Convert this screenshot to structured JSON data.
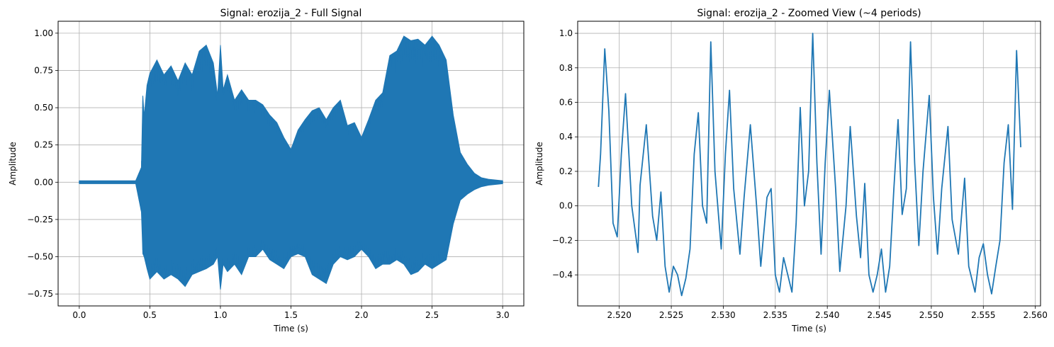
{
  "chart_data": [
    {
      "type": "line",
      "title": "Signal: erozija_2 - Full Signal",
      "xlabel": "Time (s)",
      "ylabel": "Amplitude",
      "xlim": [
        -0.15,
        3.15
      ],
      "ylim": [
        -0.83,
        1.08
      ],
      "xticks": [
        0.0,
        0.5,
        1.0,
        1.5,
        2.0,
        2.5,
        3.0
      ],
      "xtick_labels": [
        "0.0",
        "0.5",
        "1.0",
        "1.5",
        "2.0",
        "2.5",
        "3.0"
      ],
      "yticks": [
        -0.75,
        -0.5,
        -0.25,
        0.0,
        0.25,
        0.5,
        0.75,
        1.0
      ],
      "ytick_labels": [
        "−0.75",
        "−0.50",
        "−0.25",
        "0.00",
        "0.25",
        "0.50",
        "0.75",
        "1.00"
      ],
      "grid": true,
      "color": "#1f77b4",
      "series": [
        {
          "x": [
            0.0,
            0.2,
            0.4,
            0.44,
            0.45,
            0.46,
            0.48,
            0.5,
            0.55,
            0.6,
            0.65,
            0.7,
            0.75,
            0.8,
            0.85,
            0.9,
            0.95,
            0.98,
            1.0,
            1.02,
            1.05,
            1.1,
            1.15,
            1.2,
            1.25,
            1.3,
            1.35,
            1.4,
            1.45,
            1.5,
            1.55,
            1.6,
            1.65,
            1.7,
            1.75,
            1.8,
            1.85,
            1.9,
            1.95,
            2.0,
            2.05,
            2.1,
            2.15,
            2.2,
            2.25,
            2.3,
            2.35,
            2.4,
            2.45,
            2.5,
            2.55,
            2.6,
            2.65,
            2.7,
            2.75,
            2.8,
            2.85,
            2.9,
            3.0
          ],
          "upper": [
            0.01,
            0.01,
            0.01,
            0.1,
            0.58,
            0.44,
            0.65,
            0.73,
            0.82,
            0.72,
            0.78,
            0.68,
            0.8,
            0.72,
            0.88,
            0.92,
            0.8,
            0.58,
            0.92,
            0.62,
            0.72,
            0.55,
            0.62,
            0.55,
            0.55,
            0.52,
            0.45,
            0.4,
            0.3,
            0.22,
            0.35,
            0.42,
            0.48,
            0.5,
            0.42,
            0.5,
            0.55,
            0.38,
            0.4,
            0.3,
            0.42,
            0.55,
            0.6,
            0.85,
            0.88,
            0.98,
            0.95,
            0.96,
            0.92,
            0.98,
            0.92,
            0.82,
            0.45,
            0.2,
            0.12,
            0.06,
            0.03,
            0.02,
            0.01
          ],
          "lower": [
            -0.01,
            -0.01,
            -0.01,
            -0.2,
            -0.48,
            -0.5,
            -0.58,
            -0.65,
            -0.6,
            -0.65,
            -0.62,
            -0.65,
            -0.7,
            -0.62,
            -0.6,
            -0.58,
            -0.55,
            -0.5,
            -0.72,
            -0.55,
            -0.6,
            -0.55,
            -0.62,
            -0.5,
            -0.5,
            -0.45,
            -0.52,
            -0.55,
            -0.58,
            -0.5,
            -0.48,
            -0.5,
            -0.62,
            -0.65,
            -0.68,
            -0.55,
            -0.5,
            -0.52,
            -0.5,
            -0.45,
            -0.5,
            -0.58,
            -0.55,
            -0.55,
            -0.52,
            -0.55,
            -0.62,
            -0.6,
            -0.55,
            -0.58,
            -0.55,
            -0.52,
            -0.28,
            -0.12,
            -0.08,
            -0.05,
            -0.03,
            -0.02,
            -0.01
          ]
        }
      ]
    },
    {
      "type": "line",
      "title": "Signal: erozija_2 - Zoomed View (~4 periods)",
      "xlabel": "Time (s)",
      "ylabel": "Amplitude",
      "xlim": [
        2.516,
        2.5605
      ],
      "ylim": [
        -0.58,
        1.07
      ],
      "xticks": [
        2.52,
        2.525,
        2.53,
        2.535,
        2.54,
        2.545,
        2.55,
        2.555,
        2.56
      ],
      "xtick_labels": [
        "2.520",
        "2.525",
        "2.530",
        "2.535",
        "2.540",
        "2.545",
        "2.550",
        "2.555",
        "2.560"
      ],
      "yticks": [
        -0.4,
        -0.2,
        0.0,
        0.2,
        0.4,
        0.6,
        0.8,
        1.0
      ],
      "ytick_labels": [
        "−0.4",
        "−0.2",
        "0.0",
        "0.2",
        "0.4",
        "0.6",
        "0.8",
        "1.0"
      ],
      "grid": true,
      "color": "#1f77b4",
      "series": [
        {
          "x": [
            2.518,
            2.5182,
            2.5186,
            2.519,
            2.5194,
            2.5198,
            2.5202,
            2.5206,
            2.5212,
            2.5218,
            2.522,
            2.5226,
            2.5232,
            2.5236,
            2.524,
            2.5244,
            2.5248,
            2.5252,
            2.5256,
            2.526,
            2.5264,
            2.5268,
            2.5272,
            2.5276,
            2.528,
            2.5284,
            2.5288,
            2.5292,
            2.5298,
            2.5302,
            2.5306,
            2.531,
            2.5316,
            2.532,
            2.5326,
            2.5332,
            2.5336,
            2.5342,
            2.5346,
            2.535,
            2.5354,
            2.5358,
            2.5362,
            2.5366,
            2.537,
            2.5374,
            2.5378,
            2.5382,
            2.5386,
            2.539,
            2.5394,
            2.5398,
            2.5402,
            2.5408,
            2.5412,
            2.5418,
            2.5422,
            2.5428,
            2.5432,
            2.5436,
            2.544,
            2.5444,
            2.5448,
            2.5452,
            2.5456,
            2.546,
            2.5464,
            2.5468,
            2.5472,
            2.5476,
            2.548,
            2.5484,
            2.5488,
            2.5492,
            2.5498,
            2.5502,
            2.5506,
            2.551,
            2.5516,
            2.552,
            2.5526,
            2.5532,
            2.5536,
            2.5542,
            2.5546,
            2.555,
            2.5554,
            2.5558,
            2.5562,
            2.5566,
            2.557,
            2.5574,
            2.5578,
            2.5582,
            2.5586
          ],
          "y": [
            0.11,
            0.3,
            0.91,
            0.55,
            -0.1,
            -0.18,
            0.3,
            0.65,
            0.0,
            -0.27,
            0.12,
            0.47,
            -0.06,
            -0.2,
            0.08,
            -0.35,
            -0.5,
            -0.35,
            -0.4,
            -0.52,
            -0.42,
            -0.25,
            0.3,
            0.54,
            0.0,
            -0.1,
            0.95,
            0.2,
            -0.25,
            0.3,
            0.67,
            0.1,
            -0.28,
            0.05,
            0.47,
            0.0,
            -0.35,
            0.05,
            0.1,
            -0.4,
            -0.5,
            -0.3,
            -0.4,
            -0.5,
            -0.1,
            0.57,
            0.0,
            0.2,
            1.0,
            0.25,
            -0.28,
            0.25,
            0.67,
            0.1,
            -0.38,
            0.0,
            0.46,
            -0.06,
            -0.3,
            0.13,
            -0.4,
            -0.5,
            -0.4,
            -0.25,
            -0.5,
            -0.35,
            0.1,
            0.5,
            -0.05,
            0.1,
            0.95,
            0.25,
            -0.23,
            0.2,
            0.64,
            0.05,
            -0.28,
            0.1,
            0.46,
            -0.08,
            -0.28,
            0.16,
            -0.35,
            -0.5,
            -0.3,
            -0.22,
            -0.4,
            -0.51,
            -0.35,
            -0.2,
            0.25,
            0.47,
            -0.02,
            0.9,
            0.34
          ]
        }
      ]
    }
  ]
}
